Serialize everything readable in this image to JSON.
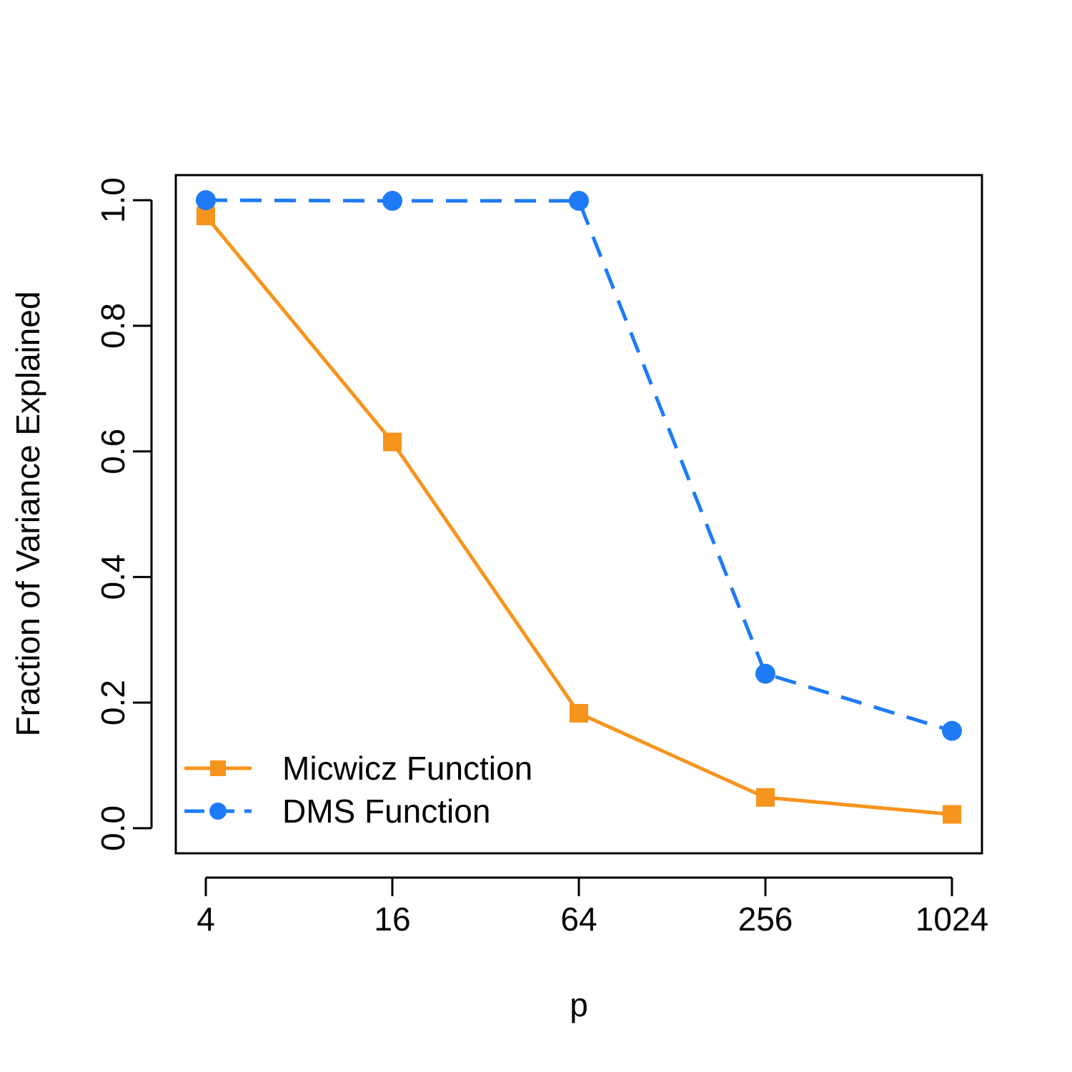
{
  "chart_data": {
    "type": "line",
    "title": "",
    "xlabel": "p",
    "ylabel": "Fraction of Variance Explained",
    "x_scale": "log",
    "x": [
      4,
      16,
      64,
      256,
      1024
    ],
    "x_tick_labels": [
      "4",
      "16",
      "64",
      "256",
      "1024"
    ],
    "y_ticks": [
      0.0,
      0.2,
      0.4,
      0.6,
      0.8,
      1.0
    ],
    "y_tick_labels": [
      "0.0",
      "0.2",
      "0.4",
      "0.6",
      "0.8",
      "1.0"
    ],
    "ylim": [
      -0.04,
      1.04
    ],
    "grid": false,
    "legend_position": "bottom-left",
    "series": [
      {
        "name": "Micwicz Function",
        "values": [
          0.975,
          0.615,
          0.183,
          0.049,
          0.022
        ],
        "color": "#F7941D",
        "line_style": "solid",
        "marker": "square"
      },
      {
        "name": "DMS Function",
        "values": [
          1.0,
          0.999,
          0.999,
          0.246,
          0.155
        ],
        "color": "#1E7BF5",
        "line_style": "dashed",
        "marker": "circle"
      }
    ]
  }
}
